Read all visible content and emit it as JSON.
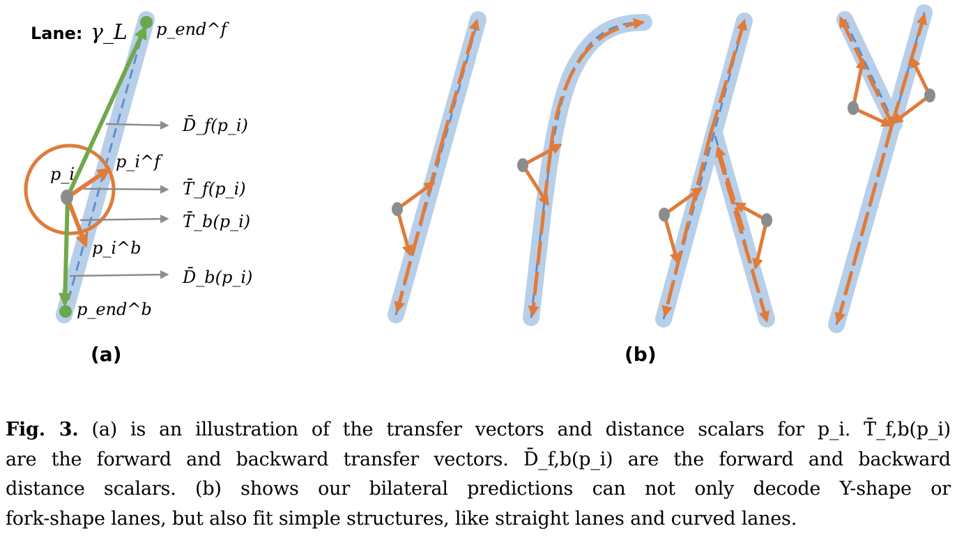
{
  "panel_a": {
    "lane_label": "Lane:",
    "lane_symbol": "γ_L",
    "point_pi": "p_i",
    "point_pi_f": "p_i^f",
    "point_pi_b": "p_i^b",
    "point_pend_f": "p_end^f",
    "point_pend_b": "p_end^b",
    "label_Df": "D̄_f(p_i)",
    "label_Tf": "T̄_f(p_i)",
    "label_Tb": "T̄_b(p_i)",
    "label_Db": "D̄_b(p_i)",
    "panel_tag": "(a)"
  },
  "panel_b": {
    "panel_tag": "(b)"
  },
  "caption": {
    "fig_label": "Fig. 3.",
    "line1": "(a) is an illustration of the transfer vectors and distance scalars for p_i. T̄_f,b(p_i)",
    "line2": "are the forward and backward transfer vectors. D̄_f,b(p_i) are the forward and backward",
    "line3": "distance scalars. (b) shows our bilateral predictions can not only decode Y-shape or",
    "line4": "fork-shape lanes, but also fit simple structures, like straight lanes and curved lanes."
  },
  "colors": {
    "lane_band": "#b8cfe9",
    "lane_center": "#5b8fd0",
    "transfer_arrow": "#e07b39",
    "distance_arrow": "#70a84c",
    "point": "#8c8c8c",
    "end_point": "#6aa84f",
    "pointer_arrow": "#8c8c8c"
  }
}
